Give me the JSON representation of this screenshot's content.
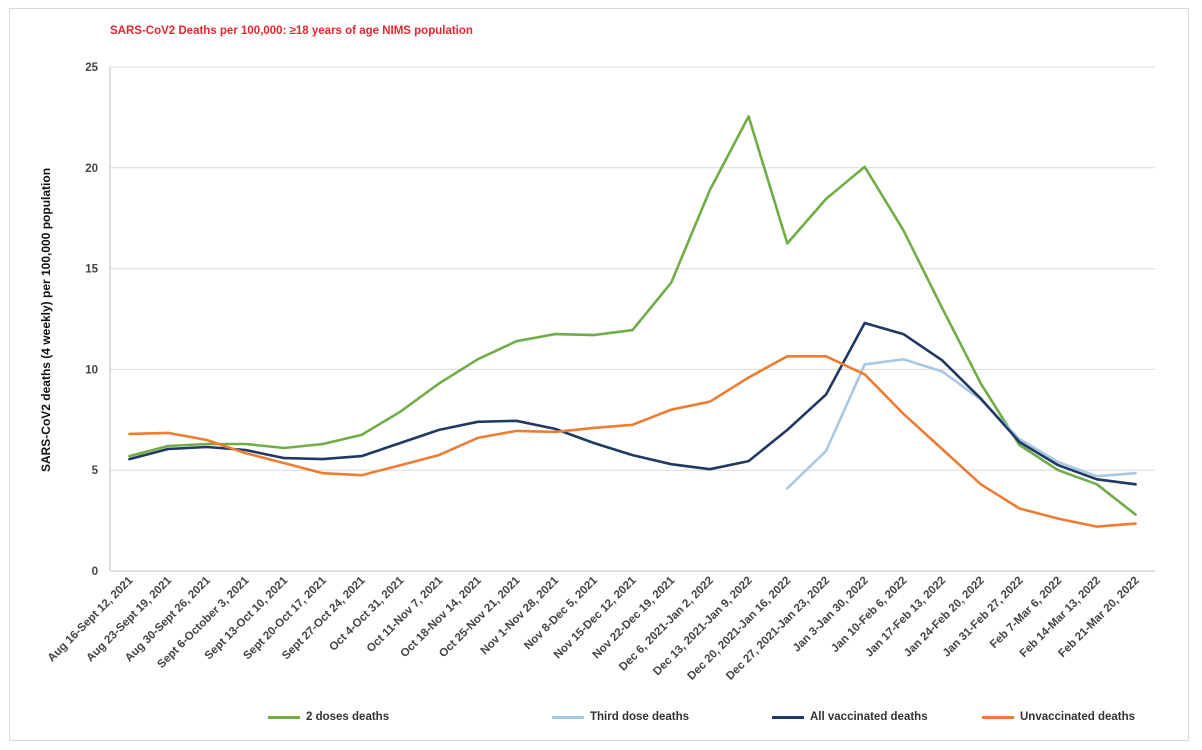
{
  "chart_data": {
    "type": "line",
    "title": "SARS-CoV2 Deaths per 100,000:  ≥18 years of age NIMS population",
    "xlabel": "",
    "ylabel": "SARS-CoV2 deaths (4 weekly) per 100,000 population",
    "ylim": [
      0,
      25
    ],
    "yticks": [
      0,
      5,
      10,
      15,
      20,
      25
    ],
    "grid": true,
    "legend_position": "bottom",
    "categories": [
      "Aug 16-Sept 12, 2021",
      "Aug 23-Sept 19, 2021",
      "Aug 30-Sept 26, 2021",
      "Sept 6-October 3, 2021",
      "Sept 13-Oct 10, 2021",
      "Sept 20-Oct 17, 2021",
      "Sept 27-Oct 24, 2021",
      "Oct 4-Oct 31, 2021",
      "Oct 11-Nov 7, 2021",
      "Oct 18-Nov 14, 2021",
      "Oct 25-Nov 21, 2021",
      "Nov 1-Nov 28, 2021",
      "Nov 8-Dec 5, 2021",
      "Nov 15-Dec 12, 2021",
      "Nov 22-Dec 19, 2021",
      "Dec 6, 2021-Jan 2, 2022",
      "Dec 13, 2021-Jan 9, 2022",
      "Dec 20, 2021-Jan 16, 2022",
      "Dec 27, 2021-Jan 23, 2022",
      "Jan 3-Jan 30, 2022",
      "Jan 10-Feb 6, 2022",
      "Jan 17-Feb 13, 2022",
      "Jan 24-Feb 20, 2022",
      "Jan 31-Feb 27, 2022",
      "Feb 7-Mar 6, 2022",
      "Feb 14-Mar 13, 2022",
      "Feb 21-Mar 20, 2022"
    ],
    "series": [
      {
        "name": "2 doses deaths",
        "color": "#70ad47",
        "values": [
          5.7,
          6.2,
          6.3,
          6.3,
          6.1,
          6.3,
          6.75,
          7.9,
          9.3,
          10.5,
          11.4,
          11.75,
          11.7,
          11.95,
          14.3,
          18.9,
          22.55,
          16.25,
          18.45,
          20.05,
          16.9,
          13.05,
          9.3,
          6.25,
          5.0,
          4.3,
          2.8
        ]
      },
      {
        "name": "Third dose deaths",
        "color": "#a9c8e3",
        "values": [
          null,
          null,
          null,
          null,
          null,
          null,
          null,
          null,
          null,
          null,
          null,
          null,
          null,
          null,
          null,
          null,
          null,
          4.1,
          5.95,
          10.25,
          10.5,
          9.9,
          8.5,
          6.55,
          5.4,
          4.7,
          4.85
        ]
      },
      {
        "name": "All vaccinated deaths",
        "color": "#203864",
        "values": [
          5.55,
          6.05,
          6.15,
          6.0,
          5.6,
          5.55,
          5.7,
          6.35,
          7.0,
          7.4,
          7.45,
          7.05,
          6.35,
          5.75,
          5.3,
          5.05,
          5.45,
          7.0,
          8.75,
          12.3,
          11.75,
          10.45,
          8.55,
          6.4,
          5.25,
          4.55,
          4.3
        ]
      },
      {
        "name": "Unvaccinated deaths",
        "color": "#ed7d31",
        "values": [
          6.8,
          6.85,
          6.5,
          5.85,
          5.35,
          4.85,
          4.75,
          5.25,
          5.75,
          6.6,
          6.95,
          6.9,
          7.1,
          7.25,
          8.0,
          8.4,
          9.6,
          10.65,
          10.65,
          9.75,
          7.8,
          6.05,
          4.3,
          3.1,
          2.6,
          2.2,
          2.35
        ]
      }
    ]
  }
}
